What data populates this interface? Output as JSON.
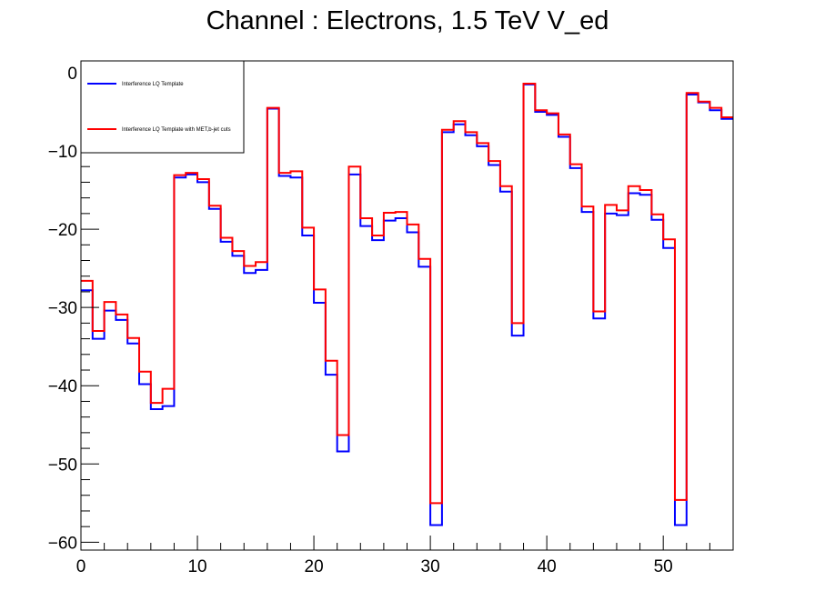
{
  "chart_data": {
    "type": "line",
    "title": "Channel : Electrons, 1.5 TeV V_ed",
    "xlabel": "",
    "ylabel": "",
    "xlim": [
      0,
      56
    ],
    "ylim": [
      -61,
      1.5
    ],
    "x_ticks": [
      0,
      10,
      20,
      30,
      40,
      50
    ],
    "y_ticks": [
      0,
      -10,
      -20,
      -30,
      -40,
      -50,
      -60
    ],
    "x_tick_labels": [
      "0",
      "10",
      "20",
      "30",
      "40",
      "50"
    ],
    "y_tick_labels": [
      "0",
      "−10",
      "−20",
      "−30",
      "−40",
      "−50",
      "−60"
    ],
    "grid": false,
    "legend_position": "top-left",
    "style": "step",
    "bin_edges": [
      0,
      1,
      2,
      3,
      4,
      5,
      6,
      7,
      8,
      9,
      10,
      11,
      12,
      13,
      14,
      15,
      16,
      17,
      18,
      19,
      20,
      21,
      22,
      23,
      24,
      25,
      26,
      27,
      28,
      29,
      30,
      31,
      32,
      33,
      34,
      35,
      36,
      37,
      38,
      39,
      40,
      41,
      42,
      43,
      44,
      45,
      46,
      47,
      48,
      49,
      50,
      51,
      52,
      53,
      54,
      55,
      56
    ],
    "series": [
      {
        "name": "Interference LQ Template",
        "color": "#0000ff",
        "values": [
          -27.8,
          -34,
          -30.4,
          -31.6,
          -34.6,
          -39.8,
          -43,
          -42.6,
          -13.4,
          -13,
          -14,
          -17.4,
          -21.6,
          -23.4,
          -25.6,
          -25.2,
          -4.6,
          -13.2,
          -13.4,
          -20.8,
          -29.4,
          -38.6,
          -48.4,
          -13,
          -19.6,
          -21.4,
          -18.9,
          -18.6,
          -20.4,
          -24.8,
          -57.8,
          -7.6,
          -6.6,
          -8,
          -9.4,
          -11.8,
          -15.2,
          -33.6,
          -1.5,
          -5,
          -5.4,
          -8.2,
          -12.2,
          -17.8,
          -31.4,
          -18,
          -18.2,
          -15.4,
          -15.6,
          -18.8,
          -22.4,
          -57.8,
          -2.8,
          -3.8,
          -4.8,
          -5.9
        ]
      },
      {
        "name": "Interference LQ Template with MET,b-jet cuts",
        "color": "#ff0000",
        "values": [
          -26.6,
          -33,
          -29.3,
          -30.9,
          -33.9,
          -38.2,
          -42.2,
          -40.4,
          -13.1,
          -12.8,
          -13.6,
          -17,
          -21.1,
          -22.8,
          -24.7,
          -24.2,
          -4.5,
          -12.8,
          -12.6,
          -19.8,
          -27.7,
          -36.8,
          -46.3,
          -12,
          -18.6,
          -20.8,
          -17.9,
          -17.8,
          -19.4,
          -23.8,
          -55,
          -7.3,
          -6.2,
          -7.6,
          -9,
          -11.3,
          -14.5,
          -32,
          -1.4,
          -4.8,
          -5.2,
          -7.9,
          -11.7,
          -17.1,
          -30.5,
          -16.9,
          -17.6,
          -14.5,
          -15,
          -18.1,
          -21.3,
          -54.6,
          -2.6,
          -3.7,
          -4.5,
          -5.7
        ]
      }
    ]
  }
}
